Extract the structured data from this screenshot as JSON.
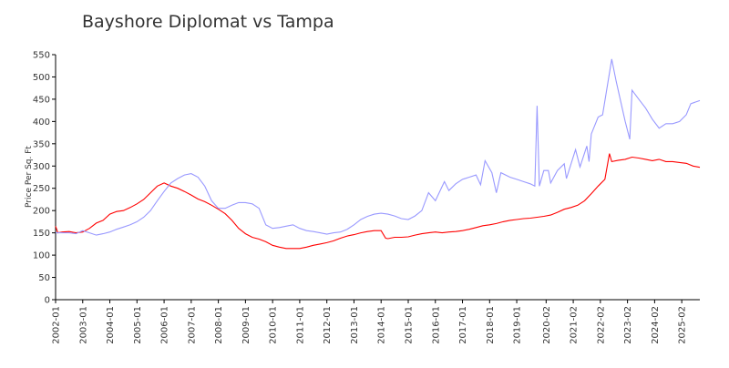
{
  "chart_data": {
    "type": "line",
    "title": "Bayshore Diplomat vs Tampa",
    "y_label": "Price Per Sq. Ft",
    "ylim": [
      0,
      550
    ],
    "yticks": [
      0,
      50,
      100,
      150,
      200,
      250,
      300,
      350,
      400,
      450,
      500,
      550
    ],
    "xlim": [
      "2002-01",
      "2025-10"
    ],
    "xticks": [
      "2002-01",
      "2003-01",
      "2004-01",
      "2005-01",
      "2006-01",
      "2007-01",
      "2008-01",
      "2009-01",
      "2010-01",
      "2011-01",
      "2012-01",
      "2013-01",
      "2014-01",
      "2015-01",
      "2016-01",
      "2017-01",
      "2018-01",
      "2019-01",
      "2020-02",
      "2021-02",
      "2022-02",
      "2023-02",
      "2024-02",
      "2025-02"
    ],
    "grid": false,
    "series": [
      {
        "color": "#ff0000",
        "x": [
          "2002-01",
          "2002-02",
          "2002-04",
          "2002-07",
          "2002-10",
          "2003-01",
          "2003-04",
          "2003-07",
          "2003-10",
          "2004-01",
          "2004-04",
          "2004-07",
          "2004-10",
          "2005-01",
          "2005-04",
          "2005-07",
          "2005-10",
          "2006-01",
          "2006-04",
          "2006-07",
          "2006-10",
          "2007-01",
          "2007-04",
          "2007-07",
          "2007-10",
          "2008-01",
          "2008-04",
          "2008-07",
          "2008-10",
          "2009-01",
          "2009-04",
          "2009-07",
          "2009-10",
          "2010-01",
          "2010-04",
          "2010-07",
          "2010-10",
          "2011-01",
          "2011-04",
          "2011-07",
          "2011-10",
          "2012-01",
          "2012-04",
          "2012-07",
          "2012-10",
          "2013-01",
          "2013-04",
          "2013-07",
          "2013-10",
          "2014-01",
          "2014-03",
          "2014-04",
          "2014-07",
          "2014-10",
          "2015-01",
          "2015-04",
          "2015-07",
          "2015-10",
          "2016-01",
          "2016-04",
          "2016-07",
          "2016-10",
          "2017-01",
          "2017-04",
          "2017-07",
          "2017-10",
          "2018-01",
          "2018-04",
          "2018-07",
          "2018-10",
          "2019-01",
          "2019-04",
          "2019-07",
          "2019-10",
          "2020-01",
          "2020-04",
          "2020-07",
          "2020-10",
          "2021-01",
          "2021-04",
          "2021-07",
          "2021-10",
          "2022-01",
          "2022-04",
          "2022-06",
          "2022-07",
          "2022-10",
          "2023-01",
          "2023-04",
          "2023-07",
          "2023-10",
          "2024-01",
          "2024-04",
          "2024-07",
          "2024-10",
          "2025-01",
          "2025-04",
          "2025-07",
          "2025-10"
        ],
        "values": [
          165,
          150,
          152,
          153,
          150,
          152,
          160,
          172,
          178,
          192,
          198,
          200,
          207,
          215,
          225,
          240,
          255,
          262,
          255,
          250,
          243,
          235,
          226,
          220,
          212,
          203,
          193,
          178,
          160,
          148,
          140,
          136,
          130,
          122,
          118,
          115,
          115,
          115,
          118,
          122,
          125,
          128,
          132,
          138,
          143,
          146,
          150,
          153,
          155,
          155,
          138,
          137,
          140,
          140,
          141,
          145,
          148,
          150,
          152,
          150,
          152,
          153,
          155,
          158,
          162,
          166,
          168,
          171,
          175,
          178,
          180,
          182,
          183,
          185,
          187,
          190,
          196,
          203,
          207,
          212,
          222,
          238,
          255,
          270,
          328,
          310,
          313,
          315,
          320,
          318,
          315,
          312,
          315,
          310,
          310,
          308,
          306,
          300,
          297
        ]
      },
      {
        "color": "#9999ff",
        "x": [
          "2002-01",
          "2002-04",
          "2002-07",
          "2002-10",
          "2003-01",
          "2003-04",
          "2003-07",
          "2003-10",
          "2004-01",
          "2004-04",
          "2004-07",
          "2004-10",
          "2005-01",
          "2005-04",
          "2005-07",
          "2005-10",
          "2006-01",
          "2006-04",
          "2006-07",
          "2006-10",
          "2007-01",
          "2007-04",
          "2007-07",
          "2007-10",
          "2008-01",
          "2008-04",
          "2008-07",
          "2008-10",
          "2009-01",
          "2009-04",
          "2009-07",
          "2009-10",
          "2010-01",
          "2010-04",
          "2010-07",
          "2010-10",
          "2011-01",
          "2011-04",
          "2011-07",
          "2011-10",
          "2012-01",
          "2012-04",
          "2012-07",
          "2012-10",
          "2013-01",
          "2013-04",
          "2013-07",
          "2013-10",
          "2014-01",
          "2014-04",
          "2014-07",
          "2014-10",
          "2015-01",
          "2015-04",
          "2015-07",
          "2015-10",
          "2016-01",
          "2016-05",
          "2016-07",
          "2016-10",
          "2017-01",
          "2017-04",
          "2017-07",
          "2017-09",
          "2017-11",
          "2018-02",
          "2018-04",
          "2018-06",
          "2018-10",
          "2019-01",
          "2019-04",
          "2019-07",
          "2019-09",
          "2019-10",
          "2019-11",
          "2020-01",
          "2020-03",
          "2020-04",
          "2020-07",
          "2020-10",
          "2020-11",
          "2021-03",
          "2021-05",
          "2021-08",
          "2021-09",
          "2021-10",
          "2022-01",
          "2022-03",
          "2022-07",
          "2022-09",
          "2023-01",
          "2023-03",
          "2023-04",
          "2023-07",
          "2023-10",
          "2024-01",
          "2024-04",
          "2024-07",
          "2024-10",
          "2025-01",
          "2025-04",
          "2025-06",
          "2025-10"
        ],
        "values": [
          150,
          150,
          150,
          148,
          155,
          150,
          145,
          148,
          152,
          158,
          163,
          168,
          175,
          185,
          200,
          222,
          243,
          262,
          272,
          280,
          283,
          275,
          255,
          222,
          205,
          205,
          212,
          218,
          218,
          215,
          205,
          168,
          160,
          162,
          165,
          168,
          160,
          155,
          153,
          150,
          147,
          150,
          152,
          158,
          168,
          180,
          187,
          192,
          194,
          192,
          188,
          182,
          180,
          188,
          200,
          240,
          222,
          265,
          245,
          260,
          270,
          275,
          280,
          258,
          312,
          285,
          240,
          285,
          275,
          270,
          265,
          260,
          255,
          435,
          255,
          290,
          290,
          262,
          290,
          305,
          272,
          337,
          298,
          345,
          310,
          372,
          410,
          415,
          540,
          490,
          400,
          360,
          470,
          450,
          430,
          405,
          385,
          395,
          395,
          400,
          415,
          440,
          447
        ]
      }
    ]
  }
}
